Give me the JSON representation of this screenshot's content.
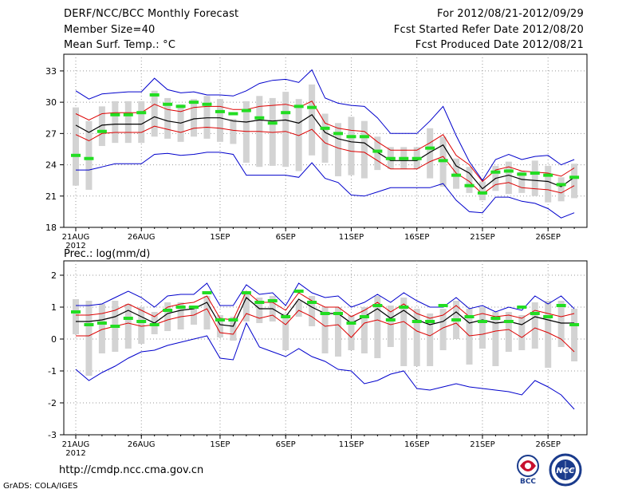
{
  "header": {
    "title": "DERF/NCC/BCC Monthly Forecast",
    "member_size": "Member Size=40",
    "variable": "Mean Surf. Temp.: °C",
    "forecast_range": "For 2012/08/21-2012/09/29",
    "start_date": "Fcst Started Refer Date 2012/08/20",
    "produced_date": "Fcst Produced Date 2012/08/21"
  },
  "footer": {
    "url": "http://cmdp.ncc.cma.gov.cn",
    "credit": "GrADS: COLA/IGES",
    "logo_left": "BCC",
    "logo_right": "NCC"
  },
  "colors": {
    "spread_bar": "#d3d3d3",
    "member_mark": "#22dd22",
    "mean_line": "#000000",
    "inner_band": "#dd0000",
    "outer_band": "#0000cc",
    "grid": "#999999"
  },
  "chart_data": [
    {
      "type": "line",
      "title": "Mean Surf. Temp.: °C",
      "x_tick_labels": [
        "21AUG",
        "26AUG",
        "1SEP",
        "6SEP",
        "11SEP",
        "16SEP",
        "21SEP",
        "26SEP"
      ],
      "x_tick_days": [
        0,
        5,
        11,
        16,
        21,
        26,
        31,
        36
      ],
      "year_label": "2012",
      "y_ticks": [
        18,
        21,
        24,
        27,
        30,
        33
      ],
      "ylim": [
        18,
        34.6
      ],
      "days": 39,
      "mean": [
        27.8,
        27.1,
        27.8,
        27.9,
        27.9,
        27.9,
        28.6,
        28.2,
        28.0,
        28.4,
        28.5,
        28.5,
        28.2,
        28.1,
        28.3,
        28.2,
        28.3,
        28.0,
        28.8,
        27.1,
        26.5,
        26.2,
        26.1,
        25.2,
        24.4,
        24.4,
        24.4,
        25.2,
        25.9,
        23.9,
        23.2,
        21.7,
        22.7,
        23.0,
        22.6,
        22.5,
        22.4,
        21.9,
        22.8
      ],
      "inner_upper": [
        28.9,
        28.3,
        28.9,
        29.0,
        29.0,
        29.0,
        29.8,
        29.3,
        29.1,
        29.5,
        29.6,
        29.6,
        29.3,
        29.3,
        29.6,
        29.7,
        29.8,
        29.5,
        30.1,
        28.0,
        27.5,
        27.3,
        27.2,
        26.2,
        25.4,
        25.4,
        25.4,
        26.1,
        26.9,
        24.9,
        24.0,
        22.4,
        23.5,
        23.8,
        23.4,
        23.3,
        23.2,
        22.9,
        23.7
      ],
      "inner_lower": [
        26.9,
        26.3,
        27.0,
        27.1,
        27.1,
        27.1,
        27.7,
        27.4,
        27.1,
        27.5,
        27.6,
        27.5,
        27.3,
        27.2,
        27.2,
        27.1,
        27.2,
        26.8,
        27.4,
        26.1,
        25.6,
        25.3,
        25.2,
        24.4,
        23.6,
        23.6,
        23.6,
        24.3,
        24.8,
        23.2,
        22.4,
        21.2,
        22.1,
        22.3,
        21.8,
        21.7,
        21.6,
        21.3,
        22.0
      ],
      "outer_upper": [
        31.1,
        30.3,
        30.8,
        30.9,
        31.0,
        31.0,
        32.3,
        31.2,
        30.9,
        31.0,
        30.7,
        30.7,
        30.6,
        31.1,
        31.8,
        32.1,
        32.2,
        31.9,
        33.1,
        30.4,
        29.9,
        29.7,
        29.6,
        28.5,
        27.0,
        27.0,
        27.0,
        28.2,
        29.6,
        26.8,
        24.3,
        22.5,
        24.5,
        25.0,
        24.5,
        24.8,
        24.9,
        24.0,
        24.5
      ],
      "outer_lower": [
        23.5,
        23.5,
        23.8,
        24.1,
        24.1,
        24.1,
        25.0,
        25.1,
        24.9,
        25.0,
        25.2,
        25.2,
        25.0,
        23.0,
        23.0,
        23.0,
        23.0,
        22.8,
        24.2,
        22.7,
        22.3,
        21.1,
        21.0,
        21.4,
        21.8,
        21.8,
        21.8,
        21.8,
        22.2,
        20.6,
        19.5,
        19.4,
        20.9,
        20.9,
        20.5,
        20.3,
        19.8,
        18.9,
        19.4
      ],
      "spread_upper": [
        29.5,
        28.2,
        29.6,
        30.1,
        30.1,
        30.1,
        31.1,
        30.4,
        29.8,
        30.3,
        30.6,
        30.3,
        28.4,
        30.1,
        30.6,
        30.4,
        31.0,
        30.3,
        31.7,
        28.9,
        28.0,
        28.6,
        28.2,
        26.7,
        25.7,
        25.7,
        25.7,
        27.5,
        26.7,
        24.6,
        23.8,
        22.4,
        23.9,
        24.3,
        23.4,
        24.4,
        23.9,
        22.8,
        24.1
      ],
      "spread_lower": [
        22.0,
        21.6,
        25.8,
        26.1,
        26.1,
        26.1,
        26.7,
        26.5,
        26.2,
        26.7,
        26.5,
        26.2,
        26.0,
        24.2,
        23.8,
        23.9,
        23.8,
        23.4,
        24.9,
        24.2,
        22.9,
        23.0,
        22.7,
        23.5,
        23.6,
        23.6,
        23.6,
        22.7,
        21.9,
        21.7,
        21.3,
        20.6,
        21.5,
        21.2,
        21.3,
        21.0,
        20.4,
        20.5,
        20.8
      ],
      "member": [
        24.9,
        24.6,
        27.2,
        28.8,
        28.8,
        29.0,
        30.7,
        29.8,
        29.6,
        30.0,
        29.8,
        29.1,
        28.9,
        29.2,
        28.5,
        28.0,
        29.0,
        29.6,
        29.5,
        27.5,
        27.0,
        26.7,
        26.7,
        25.3,
        24.6,
        24.6,
        24.6,
        25.6,
        24.4,
        23.0,
        22.0,
        21.3,
        23.3,
        23.4,
        23.1,
        23.2,
        23.0,
        22.1,
        22.8
      ]
    },
    {
      "type": "line",
      "title": "Prec.: log(mm/d)",
      "x_tick_labels": [
        "21AUG",
        "26AUG",
        "1SEP",
        "6SEP",
        "11SEP",
        "16SEP",
        "21SEP",
        "26SEP"
      ],
      "x_tick_days": [
        0,
        5,
        11,
        16,
        21,
        26,
        31,
        36
      ],
      "year_label": "2012",
      "y_ticks": [
        -3,
        -2,
        -1,
        0,
        1,
        2
      ],
      "ylim": [
        -3,
        2.45
      ],
      "days": 39,
      "mean": [
        0.55,
        0.55,
        0.6,
        0.7,
        0.9,
        0.7,
        0.5,
        0.8,
        0.9,
        0.95,
        1.15,
        0.45,
        0.4,
        1.3,
        0.95,
        0.95,
        0.7,
        1.25,
        1.0,
        0.8,
        0.8,
        0.5,
        0.7,
        0.95,
        0.65,
        0.9,
        0.6,
        0.45,
        0.55,
        0.85,
        0.5,
        0.6,
        0.5,
        0.55,
        0.45,
        0.7,
        0.6,
        0.5,
        0.5
      ],
      "inner_upper": [
        0.75,
        0.75,
        0.8,
        0.9,
        1.1,
        0.9,
        0.7,
        1.0,
        1.1,
        1.15,
        1.35,
        0.65,
        0.6,
        1.5,
        1.15,
        1.15,
        0.9,
        1.45,
        1.2,
        1.0,
        1.0,
        0.7,
        0.9,
        1.15,
        0.85,
        1.1,
        0.8,
        0.65,
        0.75,
        1.05,
        0.7,
        0.8,
        0.7,
        0.75,
        0.65,
        0.9,
        0.8,
        0.7,
        0.8
      ],
      "inner_lower": [
        0.1,
        0.1,
        0.3,
        0.4,
        0.5,
        0.4,
        0.45,
        0.6,
        0.7,
        0.75,
        0.95,
        0.2,
        0.15,
        0.8,
        0.65,
        0.75,
        0.45,
        0.9,
        0.7,
        0.4,
        0.45,
        0.05,
        0.5,
        0.6,
        0.45,
        0.55,
        0.25,
        0.1,
        0.35,
        0.5,
        0.1,
        0.15,
        0.25,
        0.3,
        0.05,
        0.35,
        0.2,
        0.0,
        -0.4
      ],
      "outer_upper": [
        1.05,
        1.05,
        1.1,
        1.3,
        1.5,
        1.3,
        1.0,
        1.35,
        1.4,
        1.4,
        1.75,
        1.05,
        1.05,
        1.7,
        1.4,
        1.45,
        1.05,
        1.75,
        1.45,
        1.3,
        1.35,
        1.0,
        1.15,
        1.4,
        1.15,
        1.45,
        1.2,
        1.0,
        1.0,
        1.3,
        0.95,
        1.05,
        0.85,
        1.0,
        0.9,
        1.35,
        1.1,
        1.35,
        0.95
      ],
      "outer_lower": [
        -0.95,
        -1.3,
        -1.05,
        -0.85,
        -0.6,
        -0.4,
        -0.35,
        -0.2,
        -0.1,
        0.0,
        0.1,
        -0.6,
        -0.65,
        0.5,
        -0.25,
        -0.4,
        -0.55,
        -0.3,
        -0.55,
        -0.7,
        -0.95,
        -1.0,
        -1.4,
        -1.3,
        -1.1,
        -1.0,
        -1.55,
        -1.6,
        -1.5,
        -1.4,
        -1.5,
        -1.55,
        -1.6,
        -1.65,
        -1.75,
        -1.3,
        -1.5,
        -1.75,
        -2.2
      ],
      "spread_upper": [
        1.25,
        1.2,
        1.1,
        1.2,
        1.1,
        1.0,
        0.85,
        1.15,
        1.15,
        1.05,
        1.35,
        0.75,
        0.7,
        1.45,
        1.3,
        1.35,
        0.8,
        1.2,
        1.35,
        1.0,
        1.0,
        0.75,
        1.0,
        1.35,
        1.05,
        1.3,
        0.95,
        0.8,
        0.95,
        1.2,
        0.95,
        1.0,
        0.85,
        0.85,
        0.75,
        1.15,
        1.2,
        1.2,
        0.95
      ],
      "spread_lower": [
        0.15,
        -1.15,
        -0.45,
        -0.4,
        -0.3,
        -0.15,
        0.15,
        0.25,
        0.3,
        0.45,
        0.3,
        0.05,
        -0.05,
        0.55,
        0.5,
        0.55,
        -0.35,
        0.7,
        0.4,
        -0.45,
        -0.55,
        -0.35,
        -0.45,
        -0.6,
        -0.25,
        -0.85,
        -0.85,
        -0.85,
        -0.35,
        0.0,
        -0.8,
        -0.3,
        -0.85,
        -0.4,
        -0.35,
        -0.3,
        -0.9,
        -0.25,
        -0.7
      ],
      "member": [
        0.85,
        0.45,
        0.5,
        0.4,
        0.65,
        0.55,
        0.45,
        0.9,
        1.0,
        1.0,
        1.45,
        0.6,
        0.6,
        1.45,
        1.15,
        1.2,
        0.7,
        1.5,
        1.15,
        0.8,
        0.8,
        0.5,
        0.7,
        1.05,
        0.6,
        1.0,
        0.55,
        0.55,
        1.05,
        0.6,
        0.7,
        0.55,
        0.65,
        0.55,
        1.0,
        0.8,
        0.7,
        1.05,
        0.45
      ]
    }
  ]
}
